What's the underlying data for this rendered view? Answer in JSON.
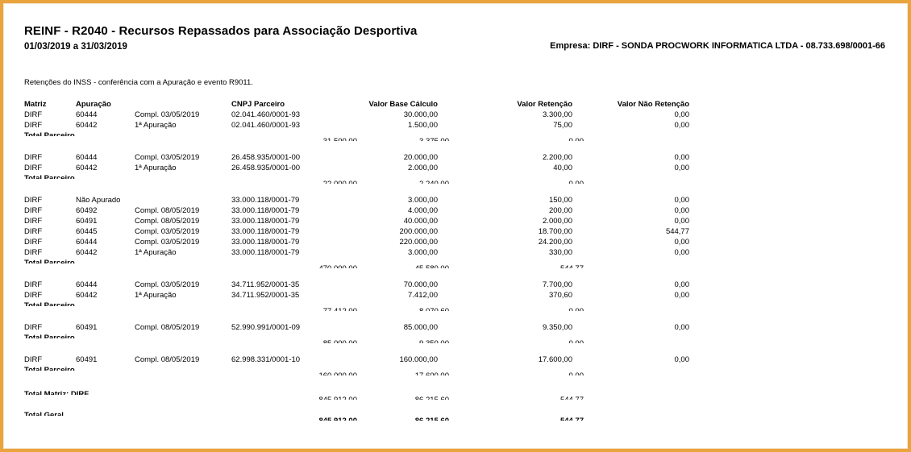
{
  "page": {
    "title": "REINF - R2040 - Recursos Repassados para Associação Desportiva",
    "period": "01/03/2019 a 31/03/2019",
    "company": "Empresa: DIRF - SONDA PROCWORK INFORMATICA LTDA - 08.733.698/0001-66",
    "subtitle": "Retenções do INSS  - conferência com a Apuração e evento R9011."
  },
  "colors": {
    "frame_border": "#EAA43E",
    "text": "#000000",
    "background": "#FFFFFF"
  },
  "table": {
    "headers": [
      "Matriz",
      "Apuração",
      "",
      "CNPJ Parceiro",
      "Valor Base Cálculo",
      "Valor Retenção",
      "Valor Não Retenção"
    ],
    "groups": [
      {
        "rows": [
          [
            "DIRF",
            "60444",
            "Compl. 03/05/2019",
            "02.041.460/0001-93",
            "30.000,00",
            "3.300,00",
            "0,00"
          ],
          [
            "DIRF",
            "60442",
            "1ª Apuração",
            "02.041.460/0001-93",
            "1.500,00",
            "75,00",
            "0,00"
          ]
        ],
        "total": {
          "label": "Total Parceiro",
          "values": [
            "31.500,00",
            "3.375,00",
            "0,00"
          ]
        }
      },
      {
        "rows": [
          [
            "DIRF",
            "60444",
            "Compl. 03/05/2019",
            "26.458.935/0001-00",
            "20.000,00",
            "2.200,00",
            "0,00"
          ],
          [
            "DIRF",
            "60442",
            "1ª Apuração",
            "26.458.935/0001-00",
            "2.000,00",
            "40,00",
            "0,00"
          ]
        ],
        "total": {
          "label": "Total Parceiro",
          "values": [
            "22.000,00",
            "2.240,00",
            "0,00"
          ]
        }
      },
      {
        "rows": [
          [
            "DIRF",
            "Não Apurado",
            "",
            "33.000.118/0001-79",
            "3.000,00",
            "150,00",
            "0,00"
          ],
          [
            "DIRF",
            "60492",
            "Compl. 08/05/2019",
            "33.000.118/0001-79",
            "4.000,00",
            "200,00",
            "0,00"
          ],
          [
            "DIRF",
            "60491",
            "Compl. 08/05/2019",
            "33.000.118/0001-79",
            "40.000,00",
            "2.000,00",
            "0,00"
          ],
          [
            "DIRF",
            "60445",
            "Compl. 03/05/2019",
            "33.000.118/0001-79",
            "200.000,00",
            "18.700,00",
            "544,77"
          ],
          [
            "DIRF",
            "60444",
            "Compl. 03/05/2019",
            "33.000.118/0001-79",
            "220.000,00",
            "24.200,00",
            "0,00"
          ],
          [
            "DIRF",
            "60442",
            "1ª Apuração",
            "33.000.118/0001-79",
            "3.000,00",
            "330,00",
            "0,00"
          ]
        ],
        "total": {
          "label": "Total Parceiro",
          "values": [
            "470.000,00",
            "45.580,00",
            "544,77"
          ]
        }
      },
      {
        "rows": [
          [
            "DIRF",
            "60444",
            "Compl. 03/05/2019",
            "34.711.952/0001-35",
            "70.000,00",
            "7.700,00",
            "0,00"
          ],
          [
            "DIRF",
            "60442",
            "1ª Apuração",
            "34.711.952/0001-35",
            "7.412,00",
            "370,60",
            "0,00"
          ]
        ],
        "total": {
          "label": "Total Parceiro",
          "values": [
            "77.412,00",
            "8.070,60",
            "0,00"
          ]
        }
      },
      {
        "rows": [
          [
            "DIRF",
            "60491",
            "Compl. 08/05/2019",
            "52.990.991/0001-09",
            "85.000,00",
            "9.350,00",
            "0,00"
          ]
        ],
        "total": {
          "label": "Total Parceiro",
          "values": [
            "85.000,00",
            "9.350,00",
            "0,00"
          ]
        }
      },
      {
        "rows": [
          [
            "DIRF",
            "60491",
            "Compl. 08/05/2019",
            "62.998.331/0001-10",
            "160.000,00",
            "17.600,00",
            "0,00"
          ]
        ],
        "total": {
          "label": "Total Parceiro",
          "values": [
            "160.000,00",
            "17.600,00",
            "0,00"
          ]
        }
      }
    ],
    "total_matriz": {
      "label": "Total Matriz: DIRF",
      "values": [
        "845.912,00",
        "86.215,60",
        "544,77"
      ]
    },
    "total_geral": {
      "label": "Total Geral",
      "values": [
        "845.912,00",
        "86.215,60",
        "544,77"
      ]
    }
  }
}
